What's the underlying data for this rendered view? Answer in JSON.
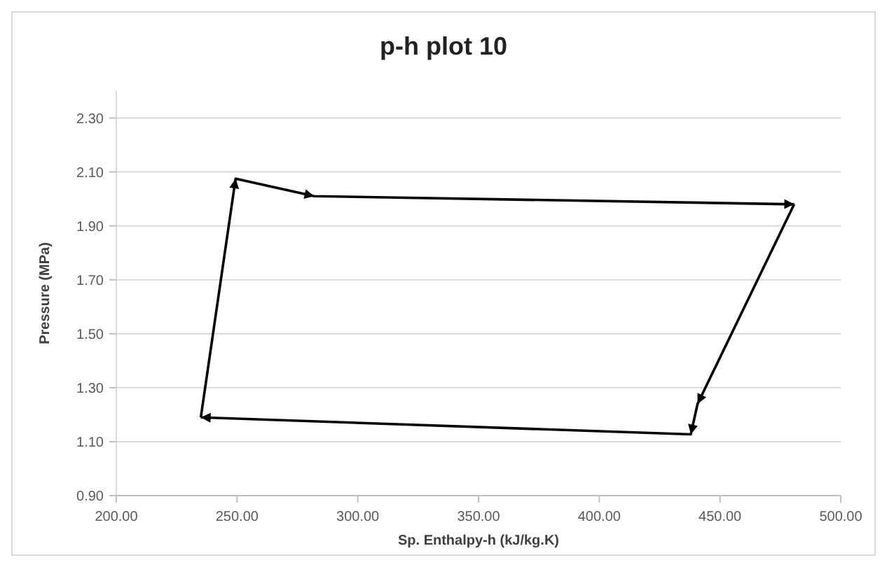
{
  "chart_data": {
    "type": "line",
    "title": "p-h plot 10",
    "xlabel": "Sp. Enthalpy-h  (kJ/kg.K)",
    "ylabel": "Pressure (MPa)",
    "series": [
      {
        "color": "#000000",
        "x": [
          235,
          249.4,
          282,
          480.7
        ],
        "values": [
          1.19,
          2.075,
          2.01,
          1.98
        ]
      },
      {
        "color": "#000000",
        "x": [
          480.7,
          440.7,
          437.9,
          235
        ],
        "values": [
          1.98,
          1.24,
          1.127,
          1.19
        ]
      }
    ],
    "xlim": [
      200,
      500
    ],
    "xticks": [
      {
        "value": 200,
        "label": "200.00"
      },
      {
        "value": 250,
        "label": "250.00"
      },
      {
        "value": 300,
        "label": "300.00"
      },
      {
        "value": 350,
        "label": "350.00"
      },
      {
        "value": 400,
        "label": "400.00"
      },
      {
        "value": 450,
        "label": "450.00"
      },
      {
        "value": 500,
        "label": "500.00"
      }
    ],
    "ylim": [
      0.9,
      2.4
    ],
    "yticks": [
      {
        "value": 0.9,
        "label": "0.90"
      },
      {
        "value": 1.1,
        "label": "1.10"
      },
      {
        "value": 1.3,
        "label": "1.30"
      },
      {
        "value": 1.5,
        "label": "1.50"
      },
      {
        "value": 1.7,
        "label": "1.70"
      },
      {
        "value": 1.9,
        "label": "1.90"
      },
      {
        "value": 2.1,
        "label": "2.10"
      },
      {
        "value": 2.3,
        "label": "2.30"
      }
    ],
    "grid": "y",
    "line_style": "solid"
  }
}
